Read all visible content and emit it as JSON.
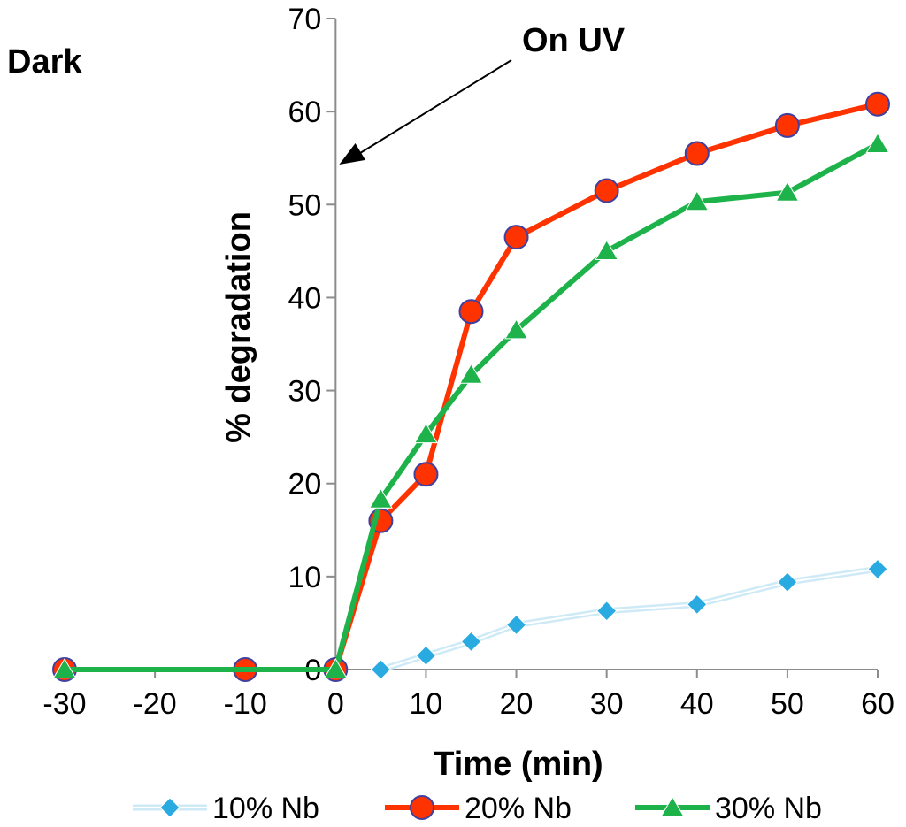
{
  "chart_data": {
    "type": "line",
    "xlabel": "Time (min)",
    "ylabel": "% degradation",
    "xlim": [
      -30,
      60
    ],
    "ylim": [
      0,
      70
    ],
    "xticks": [
      -30,
      -20,
      -10,
      0,
      10,
      20,
      30,
      40,
      50,
      60
    ],
    "yticks": [
      0,
      10,
      20,
      30,
      40,
      50,
      60,
      70
    ],
    "legend_position": "bottom",
    "annotations": [
      {
        "text": "Dark"
      },
      {
        "text": "On UV",
        "arrow_to": [
          0,
          54.5
        ]
      }
    ],
    "series": [
      {
        "name": "10% Nb",
        "color": "#29ABE2",
        "marker": "diamond",
        "x": [
          5,
          10,
          15,
          20,
          30,
          40,
          50,
          60
        ],
        "y": [
          0,
          1.5,
          3,
          4.8,
          6.3,
          7,
          9.4,
          10.8
        ]
      },
      {
        "name": "20% Nb",
        "color": "#FF3300",
        "marker": "circle",
        "x": [
          -30,
          -10,
          0,
          5,
          10,
          15,
          20,
          30,
          40,
          50,
          60
        ],
        "y": [
          0,
          0,
          0,
          16,
          21,
          38.5,
          46.5,
          51.5,
          55.5,
          58.5,
          60.8
        ]
      },
      {
        "name": "30% Nb",
        "color": "#1DB34A",
        "marker": "triangle",
        "x": [
          -30,
          0,
          5,
          10,
          15,
          20,
          30,
          40,
          50,
          60
        ],
        "y": [
          0,
          0,
          18.3,
          25.3,
          31.7,
          36.5,
          45,
          50.3,
          51.3,
          56.5
        ]
      }
    ]
  }
}
